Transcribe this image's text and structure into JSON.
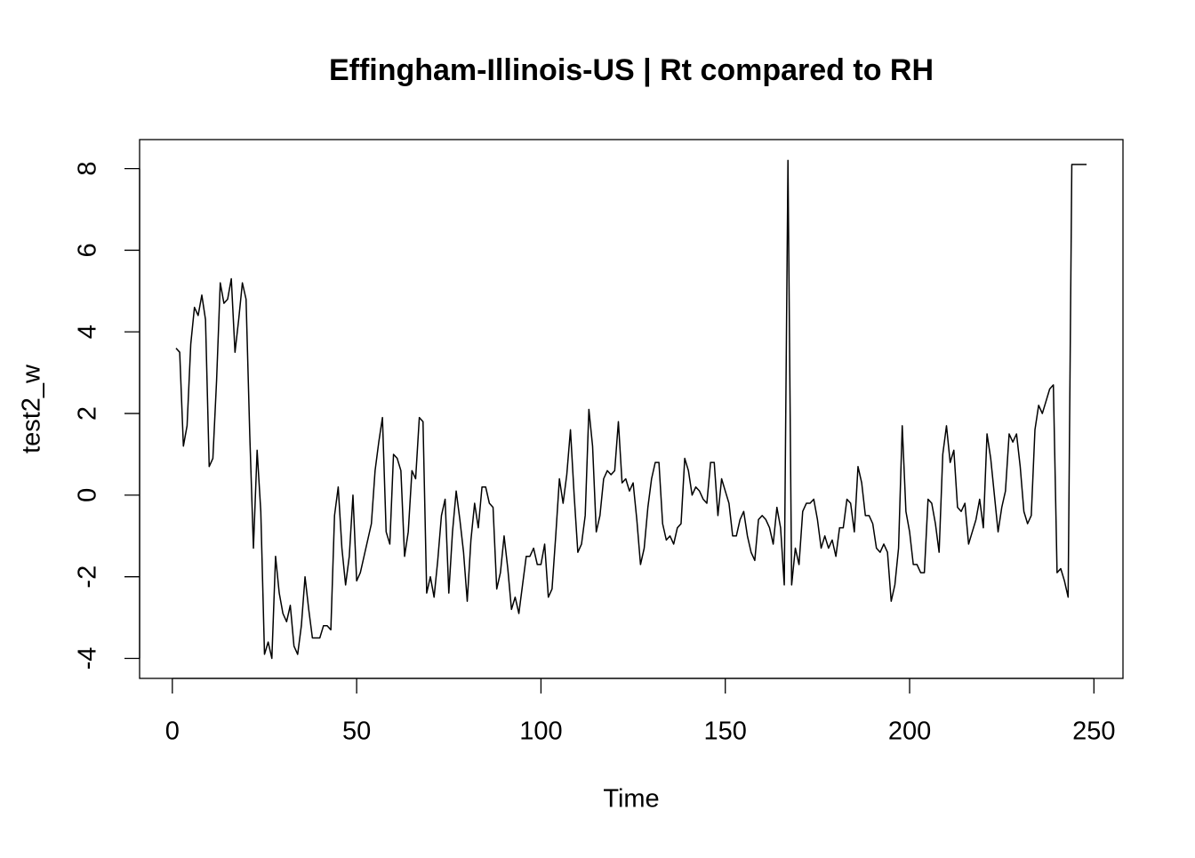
{
  "chart_data": {
    "type": "line",
    "title": "Effingham-Illinois-US | Rt compared to RH",
    "x_label": "Time",
    "y_label": "test2_w",
    "color": "#000000",
    "x": [
      1,
      2,
      3,
      4,
      5,
      6,
      7,
      8,
      9,
      10,
      11,
      12,
      13,
      14,
      15,
      16,
      17,
      18,
      19,
      20,
      21,
      22,
      23,
      24,
      25,
      26,
      27,
      28,
      29,
      30,
      31,
      32,
      33,
      34,
      35,
      36,
      37,
      38,
      39,
      40,
      41,
      42,
      43,
      44,
      45,
      46,
      47,
      48,
      49,
      50,
      51,
      52,
      53,
      54,
      55,
      56,
      57,
      58,
      59,
      60,
      61,
      62,
      63,
      64,
      65,
      66,
      67,
      68,
      69,
      70,
      71,
      72,
      73,
      74,
      75,
      76,
      77,
      78,
      79,
      80,
      81,
      82,
      83,
      84,
      85,
      86,
      87,
      88,
      89,
      90,
      91,
      92,
      93,
      94,
      95,
      96,
      97,
      98,
      99,
      100,
      101,
      102,
      103,
      104,
      105,
      106,
      107,
      108,
      109,
      110,
      111,
      112,
      113,
      114,
      115,
      116,
      117,
      118,
      119,
      120,
      121,
      122,
      123,
      124,
      125,
      126,
      127,
      128,
      129,
      130,
      131,
      132,
      133,
      134,
      135,
      136,
      137,
      138,
      139,
      140,
      141,
      142,
      143,
      144,
      145,
      146,
      147,
      148,
      149,
      150,
      151,
      152,
      153,
      154,
      155,
      156,
      157,
      158,
      159,
      160,
      161,
      162,
      163,
      164,
      165,
      166,
      167,
      168,
      169,
      170,
      171,
      172,
      173,
      174,
      175,
      176,
      177,
      178,
      179,
      180,
      181,
      182,
      183,
      184,
      185,
      186,
      187,
      188,
      189,
      190,
      191,
      192,
      193,
      194,
      195,
      196,
      197,
      198,
      199,
      200,
      201,
      202,
      203,
      204,
      205,
      206,
      207,
      208,
      209,
      210,
      211,
      212,
      213,
      214,
      215,
      216,
      217,
      218,
      219,
      220,
      221,
      222,
      223,
      224,
      225,
      226,
      227,
      228,
      229,
      230,
      231,
      232,
      233,
      234,
      235,
      236,
      237,
      238,
      239,
      240,
      241,
      242,
      243,
      244,
      245,
      246,
      247,
      248
    ],
    "values": [
      3.6,
      3.5,
      1.2,
      1.7,
      3.7,
      4.6,
      4.4,
      4.9,
      4.3,
      0.7,
      0.9,
      2.8,
      5.2,
      4.7,
      4.8,
      5.3,
      3.5,
      4.3,
      5.2,
      4.8,
      1.5,
      -1.3,
      1.1,
      -0.4,
      -3.9,
      -3.6,
      -4.0,
      -1.5,
      -2.4,
      -2.9,
      -3.1,
      -2.7,
      -3.7,
      -3.9,
      -3.2,
      -2.0,
      -2.8,
      -3.5,
      -3.5,
      -3.5,
      -3.2,
      -3.2,
      -3.3,
      -0.5,
      0.2,
      -1.3,
      -2.2,
      -1.5,
      0.0,
      -2.1,
      -1.9,
      -1.5,
      -1.1,
      -0.7,
      0.6,
      1.3,
      1.9,
      -0.9,
      -1.2,
      1.0,
      0.9,
      0.6,
      -1.5,
      -0.9,
      0.6,
      0.4,
      1.9,
      1.8,
      -2.4,
      -2.0,
      -2.5,
      -1.6,
      -0.5,
      -0.1,
      -2.4,
      -0.9,
      0.1,
      -0.6,
      -1.4,
      -2.6,
      -1.1,
      -0.2,
      -0.8,
      0.2,
      0.2,
      -0.2,
      -0.3,
      -2.3,
      -1.9,
      -1.0,
      -1.8,
      -2.8,
      -2.5,
      -2.9,
      -2.2,
      -1.5,
      -1.5,
      -1.3,
      -1.7,
      -1.7,
      -1.2,
      -2.5,
      -2.3,
      -1.0,
      0.4,
      -0.2,
      0.5,
      1.6,
      0.0,
      -1.4,
      -1.2,
      -0.5,
      2.1,
      1.2,
      -0.9,
      -0.5,
      0.4,
      0.6,
      0.5,
      0.6,
      1.8,
      0.3,
      0.4,
      0.1,
      0.3,
      -0.6,
      -1.7,
      -1.3,
      -0.3,
      0.4,
      0.8,
      0.8,
      -0.7,
      -1.1,
      -1.0,
      -1.2,
      -0.8,
      -0.7,
      0.9,
      0.6,
      0.0,
      0.2,
      0.1,
      -0.1,
      -0.2,
      0.8,
      0.8,
      -0.5,
      0.4,
      0.1,
      -0.2,
      -1.0,
      -1.0,
      -0.6,
      -0.4,
      -1.0,
      -1.4,
      -1.6,
      -0.6,
      -0.5,
      -0.6,
      -0.8,
      -1.2,
      -0.3,
      -0.8,
      -2.2,
      8.2,
      -2.2,
      -1.3,
      -1.7,
      -0.4,
      -0.2,
      -0.2,
      -0.1,
      -0.6,
      -1.3,
      -1.0,
      -1.3,
      -1.1,
      -1.5,
      -0.8,
      -0.8,
      -0.1,
      -0.2,
      -0.9,
      0.7,
      0.3,
      -0.5,
      -0.5,
      -0.7,
      -1.3,
      -1.4,
      -1.2,
      -1.4,
      -2.6,
      -2.2,
      -1.3,
      1.7,
      -0.4,
      -0.9,
      -1.7,
      -1.7,
      -1.9,
      -1.9,
      -0.1,
      -0.2,
      -0.7,
      -1.4,
      1.0,
      1.7,
      0.8,
      1.1,
      -0.3,
      -0.4,
      -0.2,
      -1.2,
      -0.9,
      -0.6,
      -0.1,
      -0.8,
      1.5,
      0.9,
      0.0,
      -0.9,
      -0.3,
      0.1,
      1.5,
      1.3,
      1.5,
      0.7,
      -0.4,
      -0.7,
      -0.5,
      1.6,
      2.2,
      2.0,
      2.3,
      2.6,
      2.7,
      -1.9,
      -1.8,
      -2.1,
      -2.5,
      8.1,
      8.1,
      8.1,
      8.1,
      8.1
    ],
    "xlim": [
      -8.88,
      257.88
    ],
    "ylim": [
      -4.49,
      8.71
    ],
    "xticks": [
      0,
      50,
      100,
      150,
      200,
      250
    ],
    "yticks": [
      -4,
      -2,
      0,
      2,
      4,
      6,
      8
    ]
  }
}
